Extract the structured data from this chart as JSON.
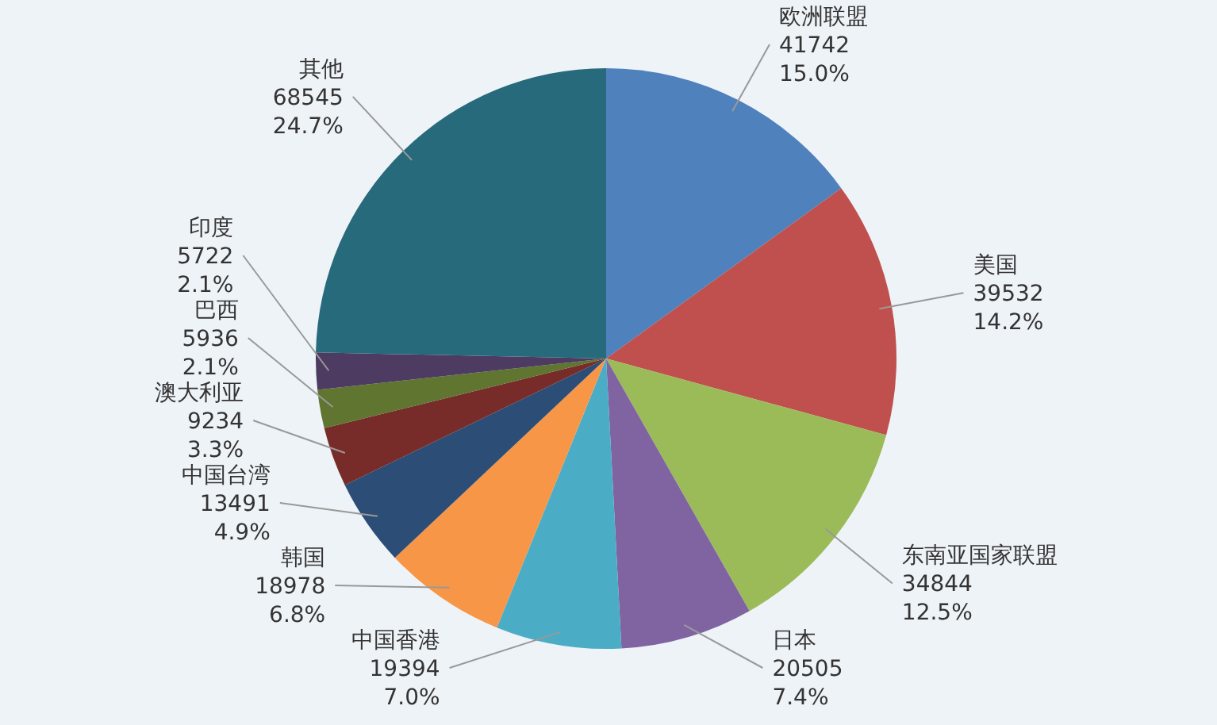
{
  "chart_data": {
    "type": "pie",
    "categories": [
      "欧洲联盟",
      "美国",
      "东南亚国家联盟",
      "日本",
      "中国香港",
      "韩国",
      "中国台湾",
      "澳大利亚",
      "巴西",
      "印度",
      "其他"
    ],
    "values": [
      41742,
      39532,
      34844,
      20505,
      19394,
      18978,
      13491,
      9234,
      5936,
      5722,
      68545
    ],
    "value_labels": [
      "41742\n15.0%",
      "39532\n14.2%",
      "34844\n12.5%",
      "20505\n7.4%",
      "19394\n7.0%",
      "18978\n6.8%",
      "13491\n4.9%",
      "9234\n3.3%",
      "5936\n2.1%",
      "5722\n2.1%",
      "68545\n24.7%"
    ],
    "colors": [
      "#4f81bd",
      "#c0504d",
      "#9bbb59",
      "#8064a2",
      "#4bacc6",
      "#f79646",
      "#2c4d75",
      "#772c2a",
      "#5f7530",
      "#4d3b62",
      "#276a7c"
    ]
  }
}
